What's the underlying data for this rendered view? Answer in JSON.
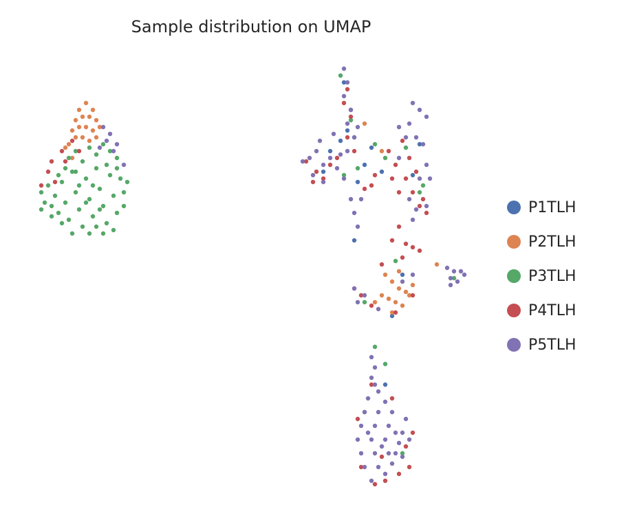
{
  "chart_data": {
    "type": "scatter",
    "title": "Sample distribution on UMAP",
    "legend": "right",
    "xlim": [
      50,
      690
    ],
    "ylim": [
      48,
      665
    ],
    "series": [
      {
        "name": "P1TLH",
        "color": "#4c72b0",
        "x": [
          500,
          510,
          505,
          515,
          495,
          480,
          530,
          555,
          470,
          520,
          600,
          610,
          540,
          515,
          585,
          570,
          560
        ],
        "values": [
          640,
          600,
          570,
          560,
          555,
          540,
          520,
          510,
          510,
          495,
          505,
          550,
          545,
          410,
          360,
          300,
          200
        ]
      },
      {
        "name": "P2TLH",
        "color": "#dd8452",
        "x": [
          115,
          125,
          135,
          110,
          120,
          130,
          140,
          105,
          115,
          125,
          135,
          145,
          110,
          120,
          130,
          140,
          100,
          105,
          95,
          555,
          530,
          560,
          570,
          580,
          590,
          565,
          575,
          585,
          595,
          555,
          570,
          545,
          600,
          580,
          635
        ],
        "values": [
          600,
          610,
          600,
          585,
          590,
          590,
          585,
          570,
          575,
          575,
          570,
          575,
          560,
          560,
          555,
          560,
          550,
          530,
          545,
          540,
          580,
          360,
          350,
          340,
          335,
          325,
          320,
          315,
          330,
          330,
          305,
          320,
          345,
          365,
          375
        ]
      },
      {
        "name": "P3TLH",
        "color": "#55a868",
        "x": [
          60,
          70,
          65,
          75,
          80,
          85,
          90,
          95,
          100,
          105,
          110,
          115,
          120,
          125,
          130,
          135,
          140,
          145,
          150,
          155,
          160,
          165,
          170,
          175,
          180,
          185,
          100,
          110,
          120,
          130,
          140,
          150,
          160,
          170,
          95,
          105,
          130,
          150,
          165,
          75,
          85,
          115,
          125,
          135,
          145,
          155,
          90,
          170,
          180,
          60,
          110,
          140,
          520,
          560,
          615,
          500,
          545,
          590,
          530,
          610,
          575,
          545,
          560,
          660,
          495,
          510,
          530,
          585
        ],
        "values": [
          480,
          490,
          465,
          460,
          475,
          450,
          495,
          465,
          440,
          510,
          480,
          455,
          430,
          500,
          470,
          445,
          515,
          485,
          460,
          435,
          505,
          475,
          450,
          500,
          480,
          495,
          530,
          540,
          525,
          545,
          535,
          550,
          540,
          530,
          515,
          420,
          420,
          420,
          425,
          445,
          505,
          490,
          465,
          490,
          455,
          520,
          435,
          515,
          460,
          455,
          510,
          430,
          515,
          530,
          490,
          505,
          550,
          545,
          320,
          480,
          380,
          255,
          230,
          355,
          650,
          585,
          160,
          100
        ]
      },
      {
        "name": "P4TLH",
        "color": "#c44e52",
        "x": [
          70,
          80,
          95,
          105,
          60,
          90,
          115,
          75,
          505,
          500,
          510,
          505,
          515,
          445,
          460,
          480,
          470,
          490,
          455,
          565,
          575,
          590,
          600,
          610,
          620,
          605,
          595,
          585,
          570,
          615,
          580,
          545,
          530,
          540,
          580,
          590,
          600,
          570,
          555,
          585,
          610,
          515,
          525,
          540,
          600,
          575,
          545,
          560,
          580,
          595,
          525,
          555,
          590,
          600,
          520,
          570,
          540
        ],
        "values": [
          510,
          495,
          525,
          555,
          490,
          540,
          540,
          525,
          630,
          610,
          590,
          560,
          540,
          525,
          510,
          520,
          500,
          530,
          495,
          540,
          520,
          500,
          480,
          460,
          450,
          510,
          530,
          555,
          500,
          470,
          480,
          505,
          485,
          490,
          430,
          405,
          400,
          410,
          375,
          385,
          395,
          340,
          330,
          315,
          330,
          305,
          55,
          60,
          70,
          80,
          80,
          95,
          110,
          130,
          150,
          180,
          200
        ]
      },
      {
        "name": "P5TLH",
        "color": "#8172b3",
        "x": [
          150,
          160,
          155,
          170,
          165,
          180,
          145,
          440,
          450,
          460,
          470,
          480,
          455,
          470,
          495,
          505,
          490,
          465,
          500,
          485,
          500,
          505,
          500,
          510,
          505,
          520,
          515,
          510,
          515,
          520,
          525,
          600,
          610,
          620,
          595,
          605,
          615,
          590,
          580,
          620,
          625,
          610,
          595,
          605,
          620,
          600,
          580,
          515,
          520,
          530,
          550,
          585,
          600,
          650,
          660,
          670,
          675,
          655,
          665,
          655,
          540,
          545,
          540,
          545,
          550,
          535,
          560,
          530,
          550,
          570,
          590,
          525,
          545,
          565,
          585,
          520,
          540,
          560,
          580,
          595,
          525,
          545,
          565,
          585,
          530,
          550,
          570,
          540,
          560,
          575,
          555,
          535,
          575
        ],
        "values": [
          575,
          565,
          555,
          550,
          540,
          520,
          545,
          525,
          530,
          540,
          520,
          530,
          505,
          495,
          535,
          540,
          515,
          555,
          500,
          565,
          660,
          640,
          620,
          600,
          580,
          575,
          560,
          470,
          450,
          430,
          470,
          610,
          600,
          590,
          580,
          560,
          550,
          560,
          575,
          520,
          500,
          500,
          470,
          455,
          460,
          440,
          530,
          340,
          320,
          330,
          310,
          350,
          360,
          370,
          365,
          365,
          360,
          355,
          350,
          345,
          240,
          225,
          210,
          200,
          190,
          180,
          175,
          160,
          160,
          160,
          150,
          140,
          140,
          140,
          130,
          120,
          120,
          120,
          115,
          120,
          100,
          100,
          100,
          95,
          80,
          80,
          85,
          60,
          70,
          100,
          110,
          130,
          130
        ]
      }
    ]
  }
}
